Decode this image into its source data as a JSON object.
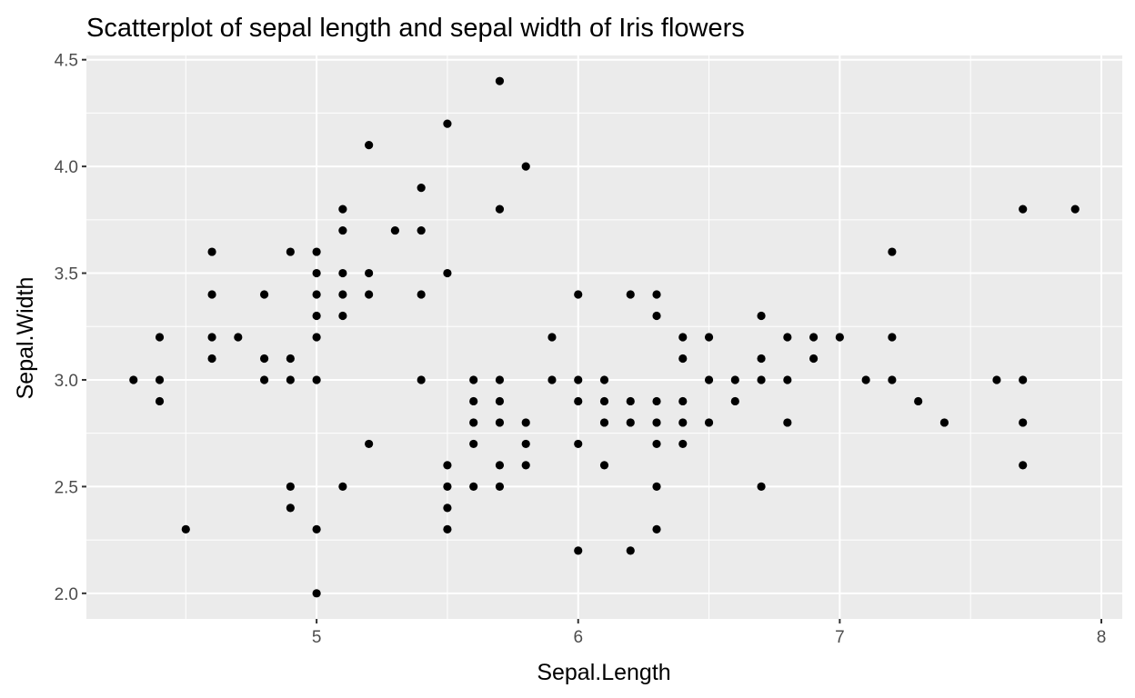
{
  "chart_data": {
    "type": "scatter",
    "title": "Scatterplot of sepal length and sepal width of Iris flowers",
    "xlabel": "Sepal.Length",
    "ylabel": "Sepal.Width",
    "xlim": [
      4.12,
      8.08
    ],
    "ylim": [
      1.88,
      4.52
    ],
    "xticks": [
      5,
      6,
      7,
      8
    ],
    "xtick_labels": [
      "5",
      "6",
      "7",
      "8"
    ],
    "yticks": [
      2.0,
      2.5,
      3.0,
      3.5,
      4.0,
      4.5
    ],
    "ytick_labels": [
      "2.0",
      "2.5",
      "3.0",
      "3.5",
      "4.0",
      "4.5"
    ],
    "grid": true,
    "legend": "none",
    "colors": {
      "panel": "#ebebeb",
      "grid": "#ffffff",
      "point": "#000000",
      "tick_text": "#4d4d4d"
    },
    "points": [
      [
        4.3,
        3.0
      ],
      [
        4.4,
        3.2
      ],
      [
        4.4,
        3.0
      ],
      [
        4.4,
        2.9
      ],
      [
        4.5,
        2.3
      ],
      [
        4.6,
        3.6
      ],
      [
        4.6,
        3.4
      ],
      [
        4.6,
        3.2
      ],
      [
        4.6,
        3.1
      ],
      [
        4.7,
        3.2
      ],
      [
        4.8,
        3.4
      ],
      [
        4.8,
        3.1
      ],
      [
        4.8,
        3.0
      ],
      [
        4.9,
        3.6
      ],
      [
        4.9,
        3.1
      ],
      [
        4.9,
        3.0
      ],
      [
        4.9,
        2.5
      ],
      [
        4.9,
        2.4
      ],
      [
        5.0,
        3.6
      ],
      [
        5.0,
        3.5
      ],
      [
        5.0,
        3.4
      ],
      [
        5.0,
        3.3
      ],
      [
        5.0,
        3.2
      ],
      [
        5.0,
        3.0
      ],
      [
        5.0,
        2.3
      ],
      [
        5.0,
        2.0
      ],
      [
        5.1,
        3.8
      ],
      [
        5.1,
        3.7
      ],
      [
        5.1,
        3.5
      ],
      [
        5.1,
        3.4
      ],
      [
        5.1,
        3.3
      ],
      [
        5.1,
        2.5
      ],
      [
        5.2,
        4.1
      ],
      [
        5.2,
        3.5
      ],
      [
        5.2,
        3.4
      ],
      [
        5.2,
        2.7
      ],
      [
        5.3,
        3.7
      ],
      [
        5.4,
        3.9
      ],
      [
        5.4,
        3.7
      ],
      [
        5.4,
        3.4
      ],
      [
        5.4,
        3.0
      ],
      [
        5.5,
        4.2
      ],
      [
        5.5,
        3.5
      ],
      [
        5.5,
        2.6
      ],
      [
        5.5,
        2.5
      ],
      [
        5.5,
        2.4
      ],
      [
        5.5,
        2.3
      ],
      [
        5.6,
        3.0
      ],
      [
        5.6,
        2.9
      ],
      [
        5.6,
        2.8
      ],
      [
        5.6,
        2.7
      ],
      [
        5.6,
        2.5
      ],
      [
        5.7,
        4.4
      ],
      [
        5.7,
        3.8
      ],
      [
        5.7,
        3.0
      ],
      [
        5.7,
        2.9
      ],
      [
        5.7,
        2.8
      ],
      [
        5.7,
        2.6
      ],
      [
        5.7,
        2.5
      ],
      [
        5.8,
        4.0
      ],
      [
        5.8,
        2.8
      ],
      [
        5.8,
        2.7
      ],
      [
        5.8,
        2.6
      ],
      [
        5.9,
        3.2
      ],
      [
        5.9,
        3.0
      ],
      [
        6.0,
        3.4
      ],
      [
        6.0,
        3.0
      ],
      [
        6.0,
        2.9
      ],
      [
        6.0,
        2.7
      ],
      [
        6.0,
        2.2
      ],
      [
        6.1,
        3.0
      ],
      [
        6.1,
        2.9
      ],
      [
        6.1,
        2.8
      ],
      [
        6.1,
        2.6
      ],
      [
        6.2,
        3.4
      ],
      [
        6.2,
        2.9
      ],
      [
        6.2,
        2.8
      ],
      [
        6.2,
        2.2
      ],
      [
        6.3,
        3.4
      ],
      [
        6.3,
        3.3
      ],
      [
        6.3,
        2.9
      ],
      [
        6.3,
        2.8
      ],
      [
        6.3,
        2.7
      ],
      [
        6.3,
        2.5
      ],
      [
        6.3,
        2.3
      ],
      [
        6.4,
        3.2
      ],
      [
        6.4,
        3.1
      ],
      [
        6.4,
        2.9
      ],
      [
        6.4,
        2.8
      ],
      [
        6.4,
        2.7
      ],
      [
        6.5,
        3.2
      ],
      [
        6.5,
        3.0
      ],
      [
        6.5,
        2.8
      ],
      [
        6.6,
        3.0
      ],
      [
        6.6,
        2.9
      ],
      [
        6.7,
        3.3
      ],
      [
        6.7,
        3.1
      ],
      [
        6.7,
        3.0
      ],
      [
        6.7,
        2.5
      ],
      [
        6.8,
        3.2
      ],
      [
        6.8,
        3.0
      ],
      [
        6.8,
        2.8
      ],
      [
        6.9,
        3.2
      ],
      [
        6.9,
        3.1
      ],
      [
        7.0,
        3.2
      ],
      [
        7.1,
        3.0
      ],
      [
        7.2,
        3.6
      ],
      [
        7.2,
        3.2
      ],
      [
        7.2,
        3.0
      ],
      [
        7.3,
        2.9
      ],
      [
        7.4,
        2.8
      ],
      [
        7.6,
        3.0
      ],
      [
        7.7,
        3.8
      ],
      [
        7.7,
        3.0
      ],
      [
        7.7,
        2.8
      ],
      [
        7.7,
        2.6
      ],
      [
        7.9,
        3.8
      ]
    ]
  }
}
